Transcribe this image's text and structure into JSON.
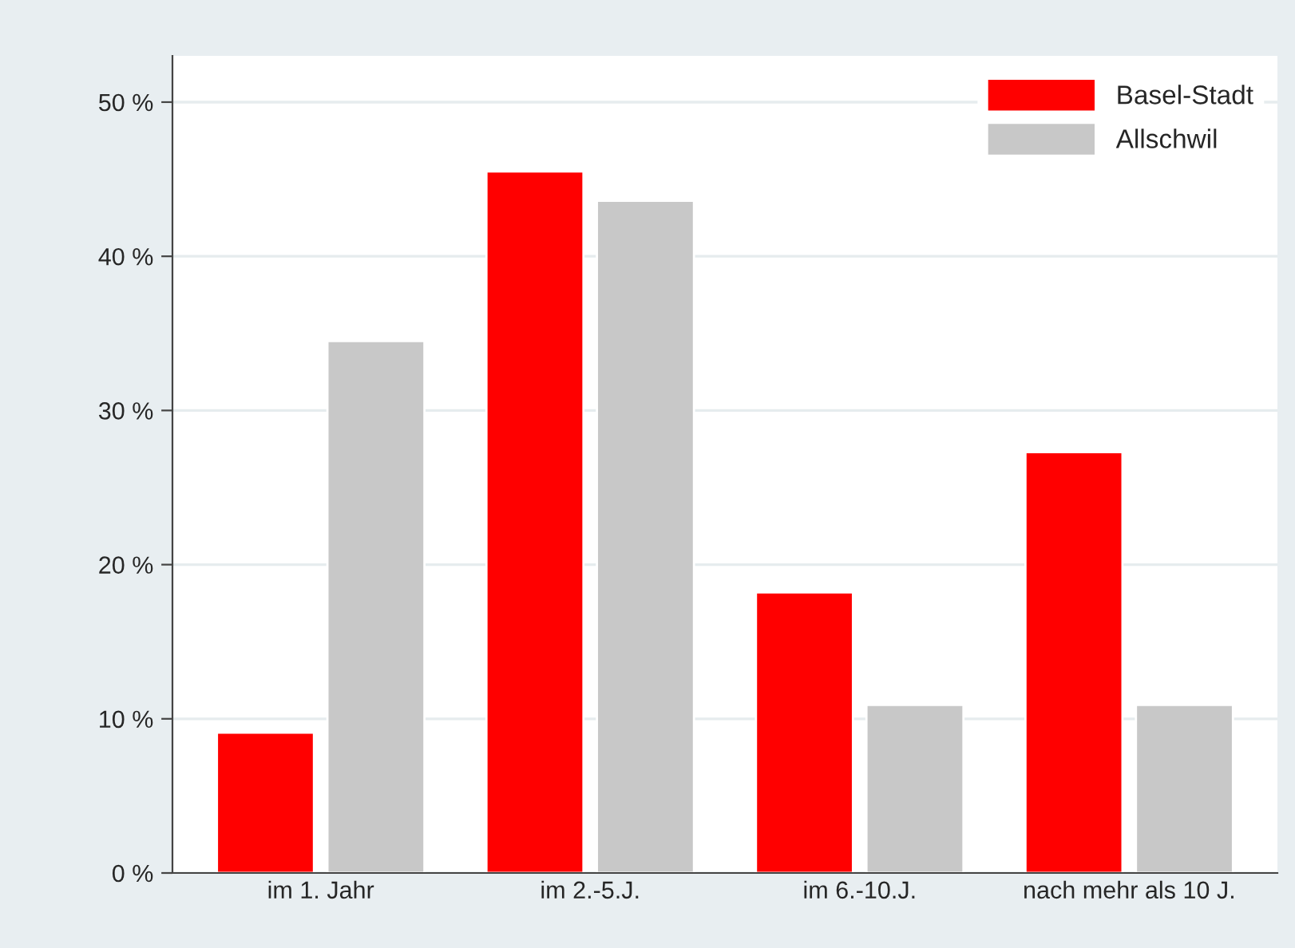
{
  "chart_data": {
    "type": "bar",
    "categories": [
      "im 1. Jahr",
      "im 2.-5.J.",
      "im 6.-10.J.",
      "nach mehr als 10 J."
    ],
    "series": [
      {
        "name": "Basel-Stadt",
        "color": "#ff0000",
        "values": [
          9.1,
          45.5,
          18.2,
          27.3
        ]
      },
      {
        "name": "Allschwil",
        "color": "#c8c8c8",
        "values": [
          34.5,
          43.6,
          10.9,
          10.9
        ]
      }
    ],
    "ylim": [
      0,
      53
    ],
    "yticks": [
      {
        "value": 0,
        "label": "0 %"
      },
      {
        "value": 10,
        "label": "10 %"
      },
      {
        "value": 20,
        "label": "20 %"
      },
      {
        "value": 30,
        "label": "30 %"
      },
      {
        "value": 40,
        "label": "40 %"
      },
      {
        "value": 50,
        "label": "50 %"
      }
    ],
    "grid": "y",
    "legend": "top right"
  }
}
